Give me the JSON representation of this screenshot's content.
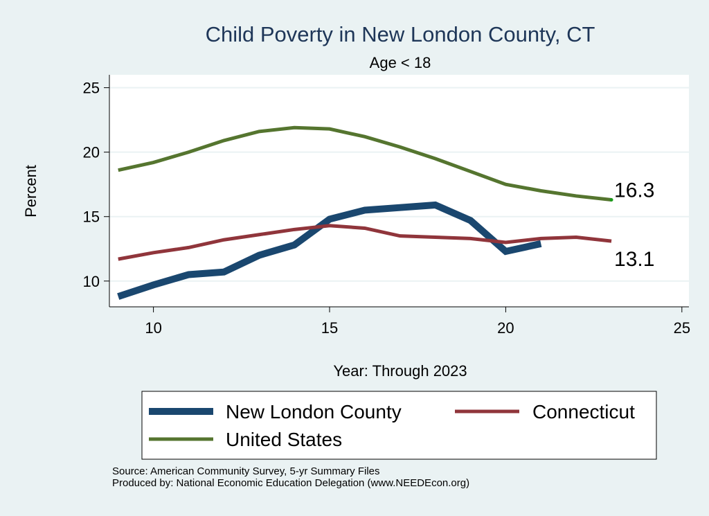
{
  "chart_data": {
    "type": "line",
    "title": "Child Poverty in New London County, CT",
    "subtitle": "Age < 18",
    "xlabel": "Year: Through 2023",
    "ylabel": "Percent",
    "xlim": [
      8.75,
      25.2
    ],
    "ylim": [
      8,
      26
    ],
    "xticks": [
      10,
      15,
      20,
      25
    ],
    "yticks": [
      10,
      15,
      20,
      25
    ],
    "grid": true,
    "legend_position": "bottom",
    "series": [
      {
        "name": "New London County",
        "color": "#1a476f",
        "width": 10,
        "x": [
          9,
          10,
          11,
          12,
          13,
          14,
          15,
          16,
          17,
          18,
          19,
          20,
          21
        ],
        "values": [
          8.8,
          9.7,
          10.5,
          10.7,
          12.0,
          12.8,
          14.8,
          15.5,
          15.7,
          15.9,
          14.7,
          12.3,
          12.9
        ]
      },
      {
        "name": "Connecticut",
        "color": "#90353b",
        "width": 5,
        "x": [
          9,
          10,
          11,
          12,
          13,
          14,
          15,
          16,
          17,
          18,
          19,
          20,
          21,
          22,
          23
        ],
        "values": [
          11.7,
          12.2,
          12.6,
          13.2,
          13.6,
          14.0,
          14.3,
          14.1,
          13.5,
          13.4,
          13.3,
          13.0,
          13.3,
          13.4,
          13.1
        ]
      },
      {
        "name": "United States",
        "color": "#55752f",
        "width": 5,
        "x": [
          9,
          10,
          11,
          12,
          13,
          14,
          15,
          16,
          17,
          18,
          19,
          20,
          21,
          22,
          23
        ],
        "values": [
          18.6,
          19.2,
          20.0,
          20.9,
          21.6,
          21.9,
          21.8,
          21.2,
          20.4,
          19.5,
          18.5,
          17.5,
          17.0,
          16.6,
          16.3
        ]
      }
    ],
    "annotations": [
      {
        "text": "16.3",
        "x": 23,
        "y": 16.3
      },
      {
        "text": "13.1",
        "x": 23,
        "y": 13.1
      }
    ]
  },
  "footer": {
    "source": "Source: American Community Survey, 5-yr Summary Files",
    "produced": "Produced by: National Economic Education Delegation (www.NEEDEcon.org)"
  }
}
